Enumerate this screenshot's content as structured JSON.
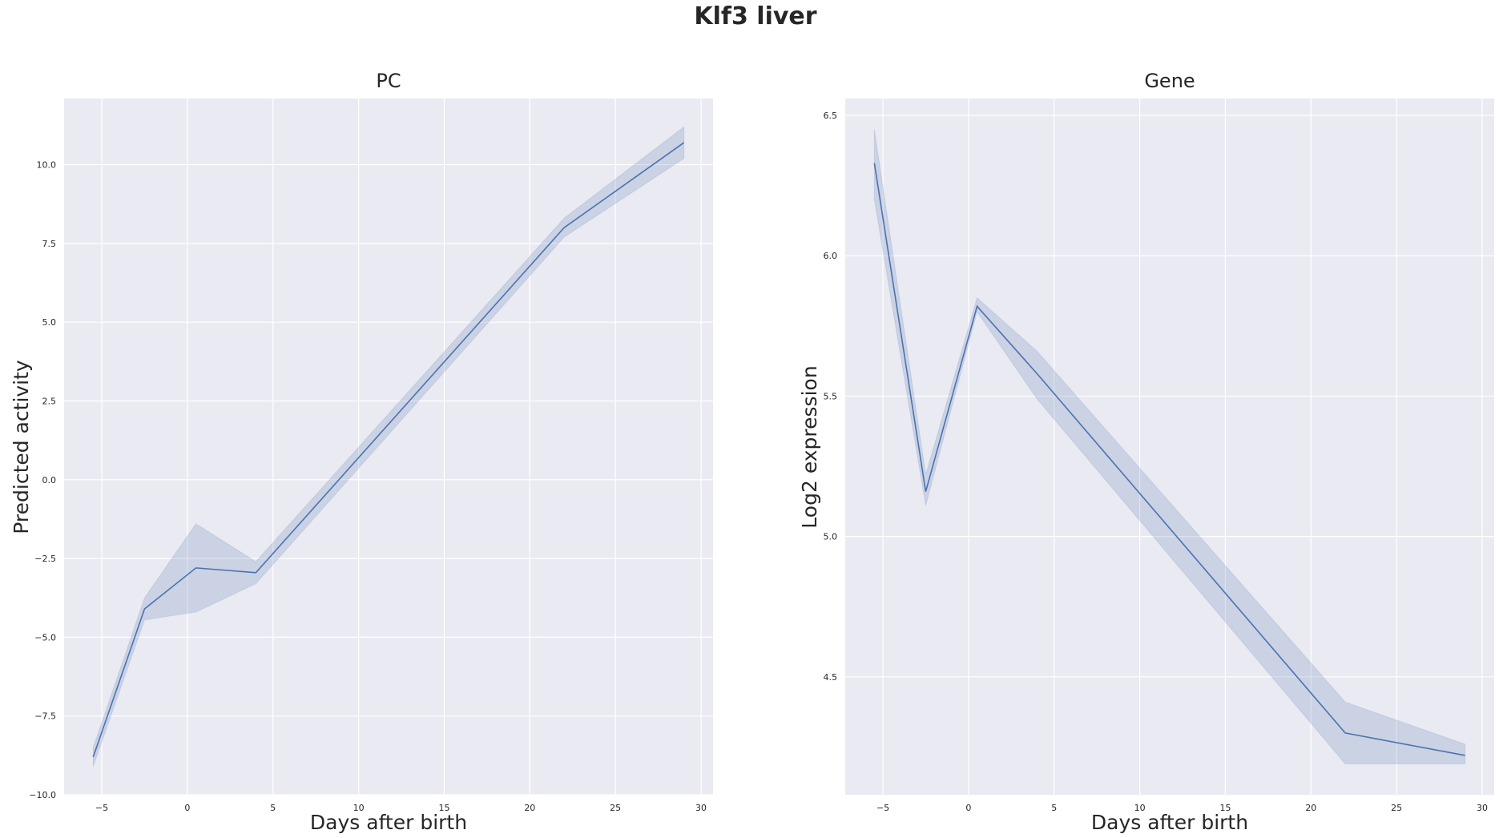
{
  "figure": {
    "title": "Klf3 liver"
  },
  "chart_data": [
    {
      "type": "line",
      "title": "PC",
      "xlabel": "Days after birth",
      "ylabel": "Predicted activity",
      "xlim": [
        -7.2,
        30.7
      ],
      "ylim": [
        -10.0,
        12.1
      ],
      "xticks": [
        -5,
        0,
        5,
        10,
        15,
        20,
        25,
        30
      ],
      "xtick_labels": [
        "−5",
        "0",
        "5",
        "10",
        "15",
        "20",
        "25",
        "30"
      ],
      "yticks": [
        -10,
        -7.5,
        -5,
        -2.5,
        0,
        2.5,
        5,
        7.5,
        10
      ],
      "ytick_labels": [
        "−10.0",
        "−7.5",
        "−5.0",
        "−2.5",
        "0.0",
        "2.5",
        "5.0",
        "7.5",
        "10.0"
      ],
      "grid": true,
      "series": [
        {
          "color": "#4c72b0",
          "x": [
            -5.5,
            -2.5,
            0.5,
            4,
            22,
            29
          ],
          "y": [
            -8.8,
            -4.1,
            -2.8,
            -2.95,
            8.0,
            10.7
          ],
          "ci_lower": [
            -9.1,
            -4.45,
            -4.2,
            -3.3,
            7.7,
            10.2
          ],
          "ci_upper": [
            -8.5,
            -3.75,
            -1.4,
            -2.6,
            8.3,
            11.2
          ]
        }
      ]
    },
    {
      "type": "line",
      "title": "Gene",
      "xlabel": "Days after birth",
      "ylabel": "Log2 expression",
      "xlim": [
        -7.2,
        30.7
      ],
      "ylim": [
        4.08,
        6.56
      ],
      "xticks": [
        -5,
        0,
        5,
        10,
        15,
        20,
        25,
        30
      ],
      "xtick_labels": [
        "−5",
        "0",
        "5",
        "10",
        "15",
        "20",
        "25",
        "30"
      ],
      "yticks": [
        4.5,
        5.0,
        5.5,
        6.0,
        6.5
      ],
      "ytick_labels": [
        "4.5",
        "5.0",
        "5.5",
        "6.0",
        "6.5"
      ],
      "grid": true,
      "series": [
        {
          "color": "#4c72b0",
          "x": [
            -5.5,
            -2.5,
            0.5,
            4,
            22,
            29
          ],
          "y": [
            6.33,
            5.16,
            5.82,
            5.58,
            4.3,
            4.22
          ],
          "ci_lower": [
            6.2,
            5.11,
            5.8,
            5.49,
            4.19,
            4.19
          ],
          "ci_upper": [
            6.45,
            5.22,
            5.85,
            5.66,
            4.41,
            4.26
          ]
        }
      ]
    }
  ]
}
